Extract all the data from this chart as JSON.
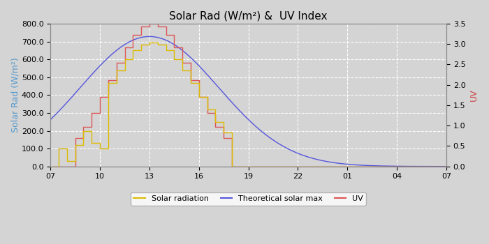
{
  "title": "Solar Rad (W/m²) &  UV Index",
  "ylabel_left": "Solar Rad (W/m²)",
  "ylabel_right": "UV",
  "ylim_left": [
    0,
    800
  ],
  "ylim_right": [
    0,
    3.5
  ],
  "yticks_left": [
    0.0,
    100.0,
    200.0,
    300.0,
    400.0,
    500.0,
    600.0,
    700.0,
    800.0
  ],
  "yticks_right": [
    0.0,
    0.5,
    1.0,
    1.5,
    2.0,
    2.5,
    3.0,
    3.5
  ],
  "xtick_labels": [
    "07",
    "10",
    "13",
    "16",
    "19",
    "22",
    "01",
    "04",
    "07"
  ],
  "xtick_positions": [
    0,
    3,
    6,
    9,
    12,
    15,
    18,
    21,
    24
  ],
  "xlim": [
    0,
    24
  ],
  "background_color": "#d4d4d4",
  "plot_bg_color": "#d4d4d4",
  "grid_color": "#ffffff",
  "legend_labels": [
    "Solar radiation",
    "Theoretical solar max",
    "UV"
  ],
  "solar_rad_color": "#ddbb00",
  "theo_color": "#5555dd",
  "uv_line_color": "#dd5555",
  "ylabel_left_color": "#5599cc",
  "ylabel_right_color": "#cc4444",
  "title_fontsize": 11,
  "axis_fontsize": 8,
  "ylabel_fontsize": 9
}
